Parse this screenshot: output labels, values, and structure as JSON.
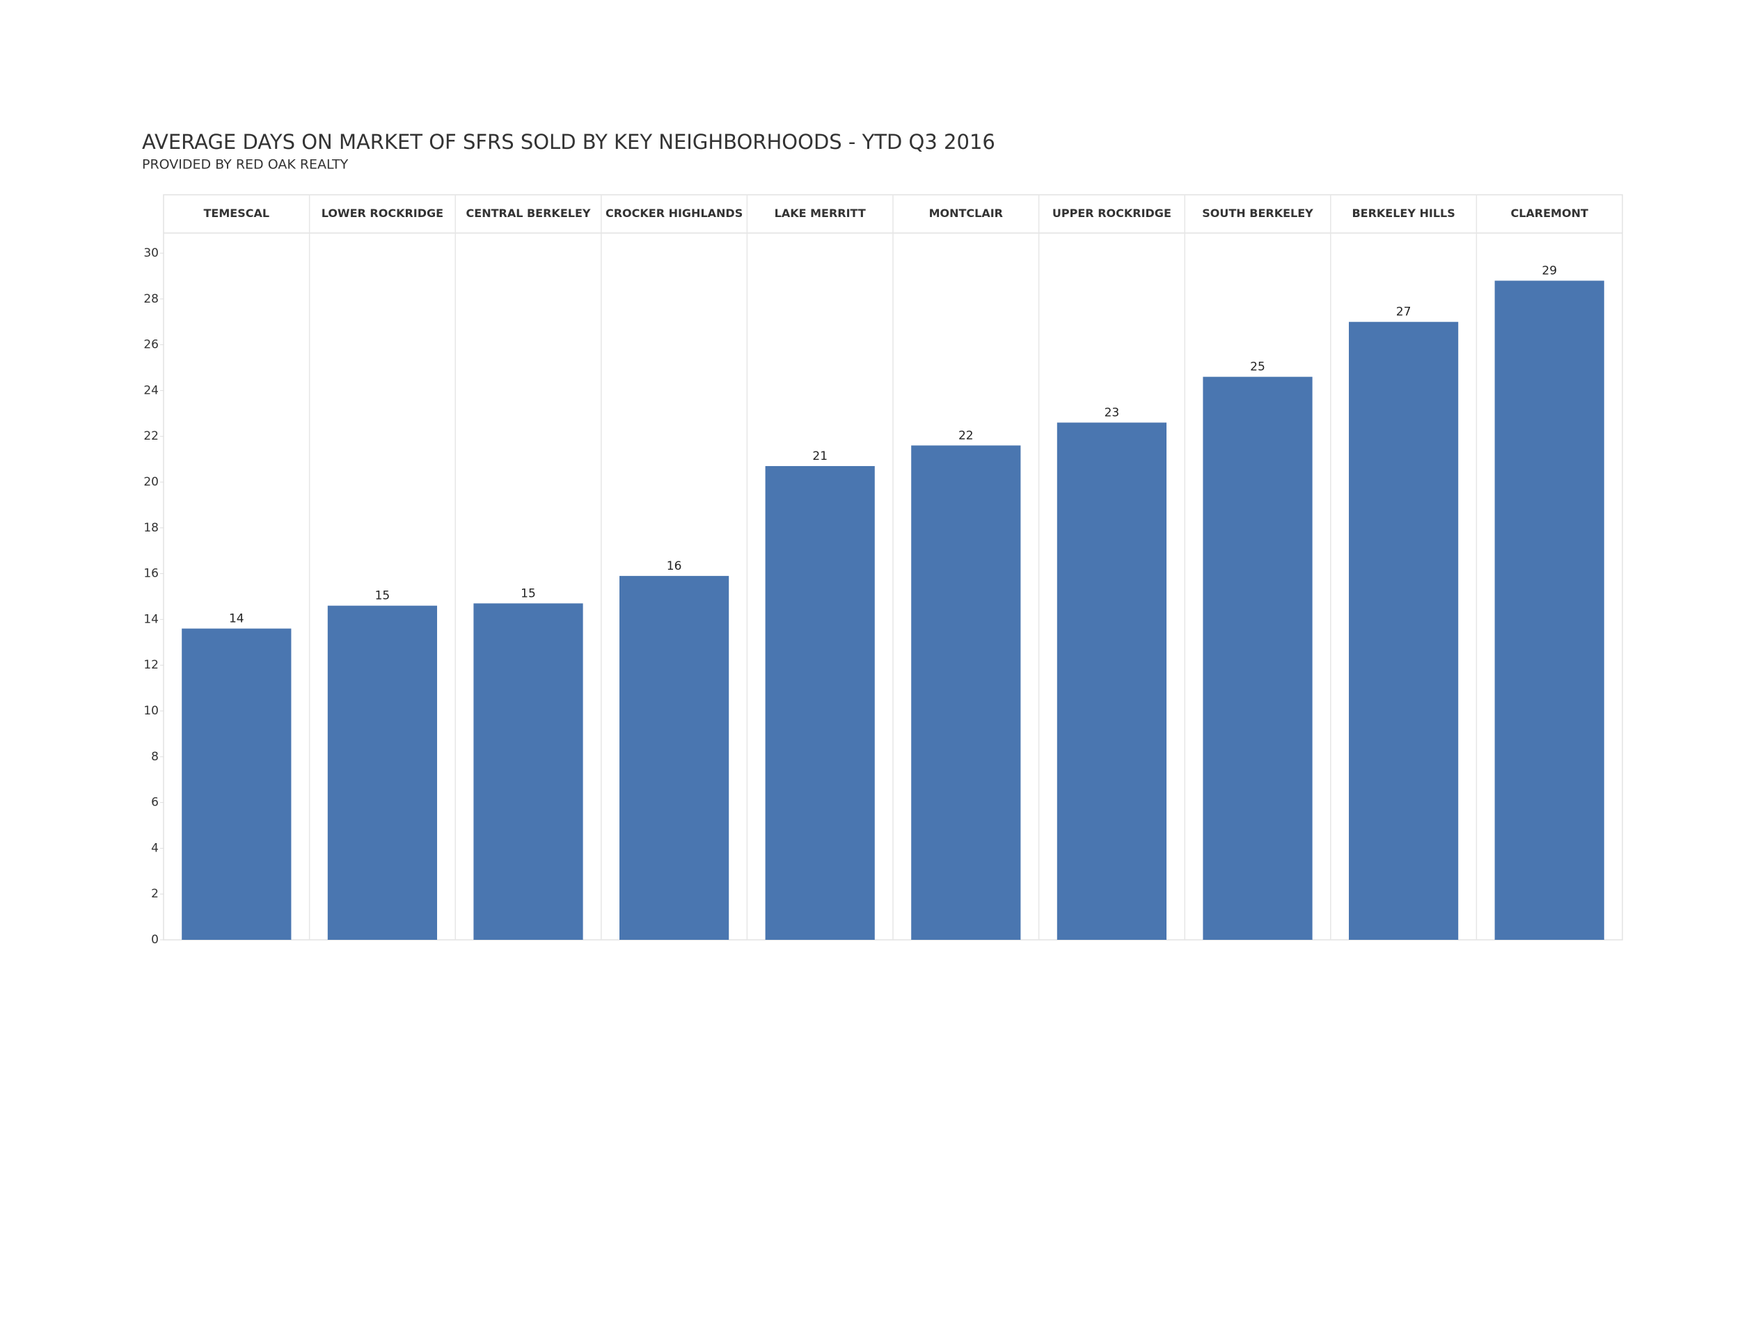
{
  "chart_data": {
    "type": "bar",
    "title": "AVERAGE DAYS ON MARKET OF SFRS SOLD BY KEY NEIGHBORHOODS - YTD Q3 2016",
    "subtitle": "PROVIDED BY RED OAK REALTY",
    "categories": [
      "TEMESCAL",
      "LOWER ROCKRIDGE",
      "CENTRAL BERKELEY",
      "CROCKER HIGHLANDS",
      "LAKE MERRITT",
      "MONTCLAIR",
      "UPPER ROCKRIDGE",
      "SOUTH BERKELEY",
      "BERKELEY HILLS",
      "CLAREMONT"
    ],
    "values": [
      13.6,
      14.6,
      14.7,
      15.9,
      20.7,
      21.6,
      22.6,
      24.6,
      27.0,
      28.8
    ],
    "value_labels": [
      "14",
      "15",
      "15",
      "16",
      "21",
      "22",
      "23",
      "25",
      "27",
      "29"
    ],
    "color": "#4a76b0",
    "ylim": [
      0,
      30
    ],
    "yticks": [
      0,
      2,
      4,
      6,
      8,
      10,
      12,
      14,
      16,
      18,
      20,
      22,
      24,
      26,
      28,
      30
    ],
    "grid": false
  }
}
